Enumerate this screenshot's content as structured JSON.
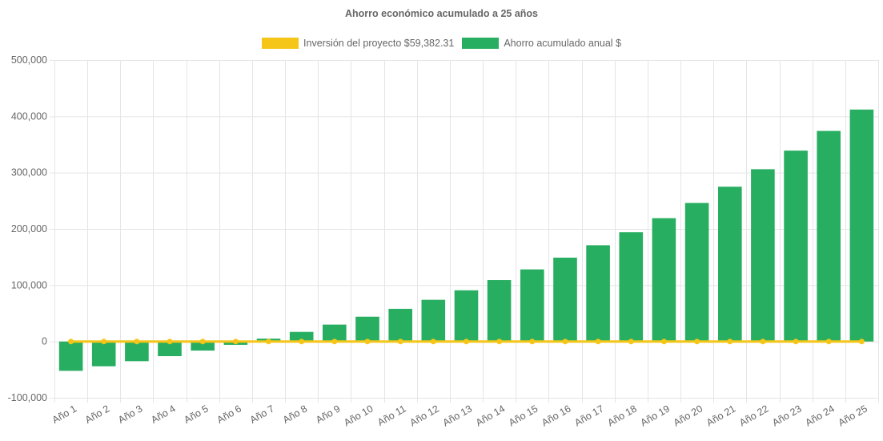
{
  "chart_data": {
    "type": "bar",
    "title": "Ahorro económico acumulado a 25 años",
    "categories": [
      "Año 1",
      "Año 2",
      "Año 3",
      "Año 4",
      "Año 5",
      "Año 6",
      "Año 7",
      "Año 8",
      "Año 9",
      "Año 10",
      "Año 11",
      "Año 12",
      "Año 13",
      "Año 14",
      "Año 15",
      "Año 16",
      "Año 17",
      "Año 18",
      "Año 19",
      "Año 20",
      "Año 21",
      "Año 22",
      "Año 23",
      "Año 24",
      "Año 25"
    ],
    "series": [
      {
        "name": "Inversión del proyecto $59,382.31",
        "type": "line",
        "color": "#f5c518",
        "values": [
          0,
          0,
          0,
          0,
          0,
          0,
          0,
          0,
          0,
          0,
          0,
          0,
          0,
          0,
          0,
          0,
          0,
          0,
          0,
          0,
          0,
          0,
          0,
          0,
          0
        ]
      },
      {
        "name": "Ahorro acumulado anual $",
        "type": "bar",
        "color": "#27ae60",
        "values": [
          -52000,
          -44000,
          -35000,
          -26000,
          -16000,
          -6000,
          5000,
          17000,
          30000,
          44000,
          58000,
          74000,
          91000,
          109000,
          128000,
          149000,
          171000,
          194000,
          219000,
          246000,
          275000,
          306000,
          339000,
          374000,
          412000
        ]
      }
    ],
    "ylim": [
      -100000,
      500000
    ],
    "yticks": [
      "500,000",
      "400,000",
      "300,000",
      "200,000",
      "100,000",
      "0",
      "-100,000"
    ],
    "ytick_values": [
      500000,
      400000,
      300000,
      200000,
      100000,
      0,
      -100000
    ],
    "grid": true,
    "legend_position": "top-center",
    "xlabel": "",
    "ylabel": ""
  }
}
